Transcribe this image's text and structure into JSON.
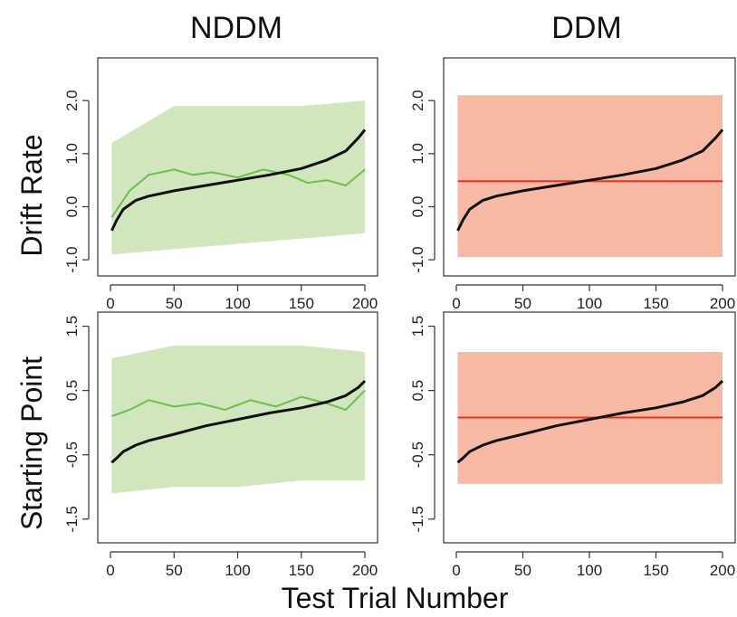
{
  "figure": {
    "column_titles": [
      "NDDM",
      "DDM"
    ],
    "row_titles": [
      "Drift Rate",
      "Starting Point"
    ],
    "x_title": "Test Trial Number"
  },
  "colors": {
    "nddm_line": "#6cc04a",
    "nddm_band": "#cfe6bf",
    "ddm_line": "#e8321f",
    "ddm_band": "#f7b9a3",
    "sorted_line": "#111111"
  },
  "chart_data": [
    {
      "type": "line",
      "panel": "NDDM / Drift Rate",
      "x_ticks": [
        0,
        50,
        100,
        150,
        200
      ],
      "y_ticks": [
        -1.0,
        0.0,
        1.0,
        2.0
      ],
      "y_tick_labels": [
        "-1.0",
        "0.0",
        "1.0",
        "2.0"
      ],
      "xlim": [
        0,
        200
      ],
      "ylim": [
        -1.1,
        2.6
      ],
      "series": [
        {
          "role": "sorted",
          "x": [
            1,
            5,
            10,
            20,
            30,
            50,
            75,
            100,
            125,
            150,
            170,
            185,
            195,
            200
          ],
          "y": [
            -0.45,
            -0.25,
            -0.05,
            0.12,
            0.2,
            0.3,
            0.4,
            0.5,
            0.6,
            0.72,
            0.88,
            1.05,
            1.3,
            1.45
          ]
        },
        {
          "role": "mean",
          "x": [
            1,
            15,
            30,
            50,
            65,
            80,
            100,
            120,
            140,
            155,
            170,
            185,
            200
          ],
          "y": [
            -0.2,
            0.3,
            0.6,
            0.7,
            0.6,
            0.65,
            0.55,
            0.7,
            0.6,
            0.45,
            0.5,
            0.4,
            0.7
          ]
        },
        {
          "role": "band",
          "x": [
            1,
            50,
            100,
            150,
            200
          ],
          "upper": [
            1.2,
            1.9,
            1.9,
            1.9,
            2.0
          ],
          "lower": [
            -0.9,
            -0.8,
            -0.7,
            -0.6,
            -0.5
          ]
        }
      ]
    },
    {
      "type": "line",
      "panel": "DDM / Drift Rate",
      "x_ticks": [
        0,
        50,
        100,
        150,
        200
      ],
      "y_ticks": [
        -1.0,
        0.0,
        1.0,
        2.0
      ],
      "y_tick_labels": [
        "-1.0",
        "0.0",
        "1.0",
        "2.0"
      ],
      "xlim": [
        0,
        200
      ],
      "ylim": [
        -1.1,
        2.6
      ],
      "series": [
        {
          "role": "sorted",
          "x": [
            1,
            5,
            10,
            20,
            30,
            50,
            75,
            100,
            125,
            150,
            170,
            185,
            195,
            200
          ],
          "y": [
            -0.45,
            -0.25,
            -0.05,
            0.12,
            0.2,
            0.3,
            0.4,
            0.5,
            0.6,
            0.72,
            0.88,
            1.05,
            1.3,
            1.45
          ]
        },
        {
          "role": "mean",
          "x": [
            1,
            200
          ],
          "y": [
            0.48,
            0.48
          ]
        },
        {
          "role": "band",
          "x": [
            1,
            200
          ],
          "upper": [
            2.1,
            2.1
          ],
          "lower": [
            -0.95,
            -0.95
          ]
        }
      ]
    },
    {
      "type": "line",
      "panel": "NDDM / Starting Point",
      "x_ticks": [
        0,
        50,
        100,
        150,
        200
      ],
      "y_ticks": [
        -1.5,
        -0.5,
        0.5,
        1.5
      ],
      "y_tick_labels": [
        "-1.5",
        "-0.5",
        "0.5",
        "1.5"
      ],
      "xlim": [
        0,
        200
      ],
      "ylim": [
        -1.7,
        1.55
      ],
      "series": [
        {
          "role": "sorted",
          "x": [
            1,
            5,
            10,
            20,
            30,
            50,
            75,
            100,
            125,
            150,
            170,
            185,
            195,
            200
          ],
          "y": [
            -0.62,
            -0.55,
            -0.45,
            -0.35,
            -0.28,
            -0.18,
            -0.05,
            0.05,
            0.15,
            0.23,
            0.32,
            0.42,
            0.55,
            0.65
          ]
        },
        {
          "role": "mean",
          "x": [
            1,
            15,
            30,
            50,
            70,
            90,
            110,
            130,
            150,
            170,
            185,
            200
          ],
          "y": [
            0.1,
            0.2,
            0.35,
            0.25,
            0.3,
            0.2,
            0.35,
            0.25,
            0.4,
            0.3,
            0.2,
            0.5
          ]
        },
        {
          "role": "band",
          "x": [
            1,
            50,
            100,
            150,
            200
          ],
          "upper": [
            1.0,
            1.2,
            1.2,
            1.2,
            1.1
          ],
          "lower": [
            -1.1,
            -1.0,
            -1.0,
            -0.9,
            -0.9
          ]
        }
      ]
    },
    {
      "type": "line",
      "panel": "DDM / Starting Point",
      "x_ticks": [
        0,
        50,
        100,
        150,
        200
      ],
      "y_ticks": [
        -1.5,
        -0.5,
        0.5,
        1.5
      ],
      "y_tick_labels": [
        "-1.5",
        "-0.5",
        "0.5",
        "1.5"
      ],
      "xlim": [
        0,
        200
      ],
      "ylim": [
        -1.7,
        1.55
      ],
      "series": [
        {
          "role": "sorted",
          "x": [
            1,
            5,
            10,
            20,
            30,
            50,
            75,
            100,
            125,
            150,
            170,
            185,
            195,
            200
          ],
          "y": [
            -0.62,
            -0.55,
            -0.45,
            -0.35,
            -0.28,
            -0.18,
            -0.05,
            0.05,
            0.15,
            0.23,
            0.32,
            0.42,
            0.55,
            0.65
          ]
        },
        {
          "role": "mean",
          "x": [
            1,
            200
          ],
          "y": [
            0.08,
            0.08
          ]
        },
        {
          "role": "band",
          "x": [
            1,
            200
          ],
          "upper": [
            1.1,
            1.1
          ],
          "lower": [
            -0.95,
            -0.95
          ]
        }
      ]
    }
  ]
}
